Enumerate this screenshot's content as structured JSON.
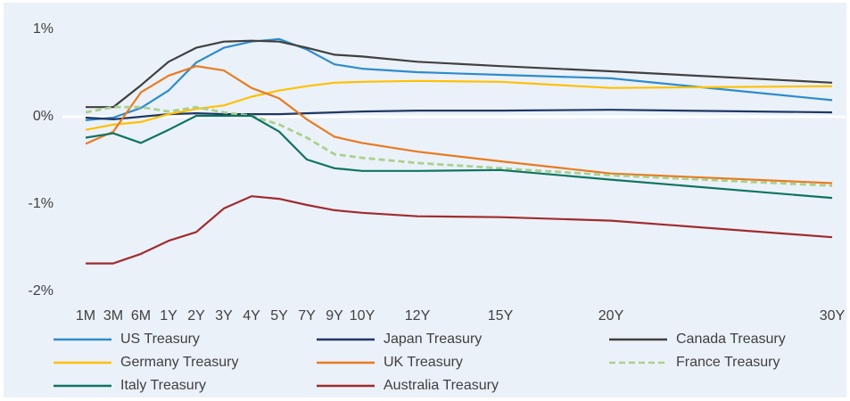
{
  "chart_data": {
    "type": "line",
    "categories": [
      "1M",
      "3M",
      "6M",
      "1Y",
      "2Y",
      "3Y",
      "4Y",
      "5Y",
      "7Y",
      "9Y",
      "10Y",
      "12Y",
      "15Y",
      "20Y",
      "30Y"
    ],
    "ylim": [
      -2,
      1
    ],
    "yticks": [
      {
        "value": 1,
        "label": "1%"
      },
      {
        "value": 0,
        "label": "0%"
      },
      {
        "value": -1,
        "label": "-1%"
      },
      {
        "value": -2,
        "label": "-2%"
      }
    ],
    "zero_line": true,
    "legend": "bottom",
    "series": [
      {
        "name": "US Treasury",
        "color": "#2e8ccb",
        "values": [
          -0.04,
          -0.01,
          0.1,
          0.3,
          0.62,
          0.79,
          0.86,
          0.89,
          0.77,
          0.6,
          0.55,
          0.51,
          0.48,
          0.44,
          0.19
        ]
      },
      {
        "name": "Japan Treasury",
        "color": "#1f3864",
        "values": [
          -0.01,
          -0.03,
          0.0,
          0.03,
          0.04,
          0.03,
          0.03,
          0.03,
          0.04,
          0.05,
          0.06,
          0.07,
          0.07,
          0.08,
          0.05
        ]
      },
      {
        "name": "Canada Treasury",
        "color": "#404040",
        "values": [
          0.11,
          0.11,
          0.36,
          0.63,
          0.79,
          0.86,
          0.87,
          0.86,
          0.79,
          0.71,
          0.69,
          0.63,
          0.58,
          0.52,
          0.39
        ]
      },
      {
        "name": "Germany Treasury",
        "color": "#ffc000",
        "values": [
          -0.15,
          -0.09,
          -0.06,
          0.03,
          0.09,
          0.13,
          0.23,
          0.3,
          0.35,
          0.39,
          0.4,
          0.41,
          0.4,
          0.33,
          0.35
        ]
      },
      {
        "name": "UK Treasury",
        "color": "#e97a1f",
        "values": [
          -0.31,
          -0.17,
          0.28,
          0.47,
          0.58,
          0.53,
          0.33,
          0.21,
          -0.03,
          -0.23,
          -0.3,
          -0.4,
          -0.51,
          -0.65,
          -0.76
        ]
      },
      {
        "name": "France Treasury",
        "color": "#a9d18e",
        "dashed": true,
        "values": [
          0.05,
          0.11,
          0.11,
          0.06,
          0.11,
          0.05,
          0.01,
          -0.09,
          -0.24,
          -0.43,
          -0.47,
          -0.53,
          -0.59,
          -0.67,
          -0.79
        ]
      },
      {
        "name": "Italy Treasury",
        "color": "#0e7462",
        "values": [
          -0.24,
          -0.19,
          -0.3,
          -0.15,
          0.01,
          0.01,
          0.01,
          -0.17,
          -0.49,
          -0.59,
          -0.62,
          -0.62,
          -0.61,
          -0.72,
          -0.93
        ]
      },
      {
        "name": "Australia Treasury",
        "color": "#a02b2e",
        "values": [
          -1.68,
          -1.68,
          -1.57,
          -1.42,
          -1.32,
          -1.05,
          -0.91,
          -0.94,
          -1.01,
          -1.07,
          -1.1,
          -1.14,
          -1.15,
          -1.19,
          -1.38
        ]
      }
    ]
  }
}
